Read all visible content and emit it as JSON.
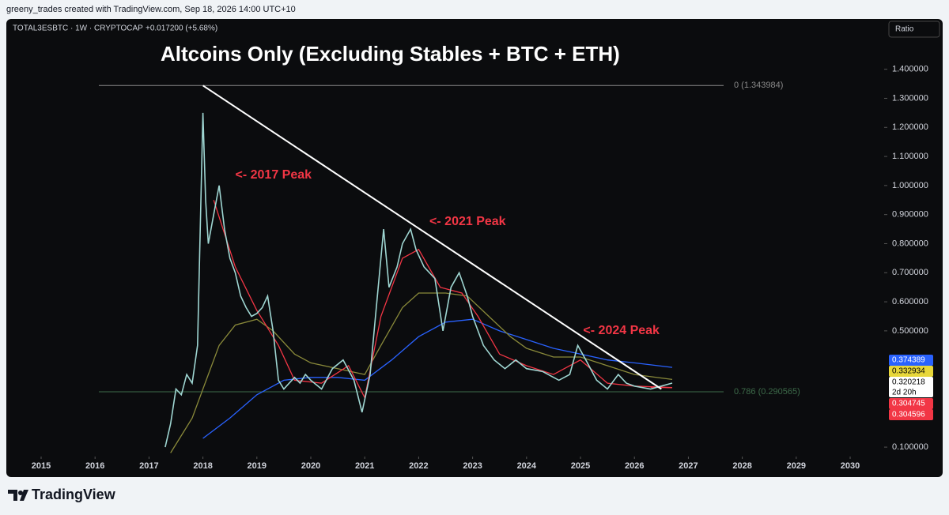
{
  "header": {
    "credit": "greeny_trades created with TradingView.com, Sep 18, 2026 14:00 UTC+10"
  },
  "footer": {
    "brand": "TradingView"
  },
  "chart_data": {
    "type": "line",
    "title": "Altcoins Only (Excluding Stables + BTC + ETH)",
    "symbol": "TOTAL3ESBTC · 1W · CRYPTOCAP",
    "change": "+0.017200 (+5.68%)",
    "scale_button": "Ratio",
    "countdown": "2d 20h",
    "xlim": [
      2014.355,
      2030.63
    ],
    "xticks": [
      2015,
      2016,
      2017,
      2018,
      2019,
      2020,
      2021,
      2022,
      2023,
      2024,
      2025,
      2026,
      2027,
      2028,
      2029,
      2030
    ],
    "ylim": [
      0.0676,
      1.573
    ],
    "yticks": [
      {
        "value": 0.1,
        "label": "0.100000"
      },
      {
        "value": 0.5,
        "label": "0.500000"
      },
      {
        "value": 0.6,
        "label": "0.600000"
      },
      {
        "value": 0.7,
        "label": "0.700000"
      },
      {
        "value": 0.8,
        "label": "0.800000"
      },
      {
        "value": 0.9,
        "label": "0.900000"
      },
      {
        "value": 1.0,
        "label": "1.000000"
      },
      {
        "value": 1.1,
        "label": "1.100000"
      },
      {
        "value": 1.2,
        "label": "1.200000"
      },
      {
        "value": 1.3,
        "label": "1.300000"
      },
      {
        "value": 1.4,
        "label": "1.400000"
      }
    ],
    "series": [
      {
        "color": "#9fd6d2",
        "x": [
          2017.3,
          2017.4,
          2017.5,
          2017.6,
          2017.7,
          2017.8,
          2017.9,
          2018.0,
          2018.05,
          2018.1,
          2018.2,
          2018.3,
          2018.4,
          2018.5,
          2018.6,
          2018.7,
          2018.8,
          2018.9,
          2019.0,
          2019.1,
          2019.2,
          2019.3,
          2019.4,
          2019.5,
          2019.6,
          2019.7,
          2019.8,
          2019.9,
          2020.0,
          2020.2,
          2020.4,
          2020.6,
          2020.8,
          2020.95,
          2021.1,
          2021.2,
          2021.35,
          2021.45,
          2021.6,
          2021.7,
          2021.85,
          2021.95,
          2022.1,
          2022.3,
          2022.45,
          2022.6,
          2022.75,
          2022.9,
          2023.0,
          2023.2,
          2023.4,
          2023.6,
          2023.8,
          2024.0,
          2024.3,
          2024.6,
          2024.8,
          2024.95,
          2025.1,
          2025.3,
          2025.5,
          2025.7,
          2025.85,
          2026.0,
          2026.3,
          2026.5,
          2026.7
        ],
        "values": [
          0.1,
          0.18,
          0.3,
          0.28,
          0.35,
          0.32,
          0.45,
          1.25,
          0.95,
          0.8,
          0.9,
          1.0,
          0.85,
          0.75,
          0.7,
          0.62,
          0.58,
          0.55,
          0.56,
          0.58,
          0.62,
          0.5,
          0.33,
          0.3,
          0.32,
          0.34,
          0.32,
          0.35,
          0.33,
          0.3,
          0.37,
          0.4,
          0.33,
          0.22,
          0.35,
          0.55,
          0.85,
          0.65,
          0.72,
          0.8,
          0.85,
          0.78,
          0.72,
          0.68,
          0.5,
          0.65,
          0.7,
          0.62,
          0.55,
          0.45,
          0.4,
          0.37,
          0.4,
          0.37,
          0.36,
          0.33,
          0.35,
          0.45,
          0.4,
          0.33,
          0.3,
          0.35,
          0.32,
          0.31,
          0.3,
          0.31,
          0.320218
        ]
      },
      {
        "color": "#2962ff",
        "x": [
          2018.0,
          2018.5,
          2019.0,
          2019.5,
          2020.0,
          2020.5,
          2021.0,
          2021.5,
          2022.0,
          2022.5,
          2023.0,
          2023.5,
          2024.0,
          2024.5,
          2025.0,
          2025.5,
          2026.0,
          2026.7
        ],
        "values": [
          0.13,
          0.2,
          0.28,
          0.33,
          0.34,
          0.34,
          0.33,
          0.4,
          0.48,
          0.53,
          0.54,
          0.5,
          0.47,
          0.44,
          0.42,
          0.4,
          0.39,
          0.374389
        ]
      },
      {
        "color": "#8a8a3a",
        "x": [
          2017.4,
          2017.8,
          2018.0,
          2018.3,
          2018.6,
          2019.0,
          2019.3,
          2019.7,
          2020.0,
          2020.5,
          2021.0,
          2021.3,
          2021.7,
          2022.0,
          2022.5,
          2022.9,
          2023.3,
          2023.7,
          2024.0,
          2024.5,
          2025.0,
          2025.5,
          2026.0,
          2026.7
        ],
        "values": [
          0.08,
          0.2,
          0.3,
          0.45,
          0.52,
          0.54,
          0.5,
          0.42,
          0.39,
          0.37,
          0.35,
          0.45,
          0.58,
          0.63,
          0.63,
          0.62,
          0.55,
          0.48,
          0.44,
          0.41,
          0.41,
          0.38,
          0.35,
          0.332934
        ]
      },
      {
        "color": "#f23645",
        "x": [
          2018.2,
          2018.6,
          2019.0,
          2019.4,
          2019.7,
          2020.2,
          2020.7,
          2021.0,
          2021.3,
          2021.7,
          2022.0,
          2022.4,
          2022.8,
          2023.1,
          2023.5,
          2024.0,
          2024.5,
          2025.0,
          2025.5,
          2026.0,
          2026.7
        ],
        "values": [
          0.95,
          0.72,
          0.57,
          0.45,
          0.33,
          0.32,
          0.38,
          0.27,
          0.55,
          0.75,
          0.78,
          0.65,
          0.63,
          0.55,
          0.42,
          0.38,
          0.35,
          0.4,
          0.32,
          0.31,
          0.304745
        ]
      },
      {
        "color": "#f23645",
        "x": [
          2026.3,
          2026.7
        ],
        "values": [
          0.306,
          0.304596
        ]
      }
    ],
    "levels": [
      {
        "label": "0 (1.343984)",
        "value": 1.343984,
        "color": "#8a8a8a"
      },
      {
        "label": "0.786 (0.290565)",
        "value": 0.290565,
        "color": "#3d6b4a"
      }
    ],
    "trendline": {
      "x": [
        2018.0,
        2026.5
      ],
      "values": [
        1.343984,
        0.3
      ]
    },
    "annotations": [
      "<- 2017 Peak",
      "<- 2021 Peak",
      "<- 2024 Peak"
    ]
  }
}
